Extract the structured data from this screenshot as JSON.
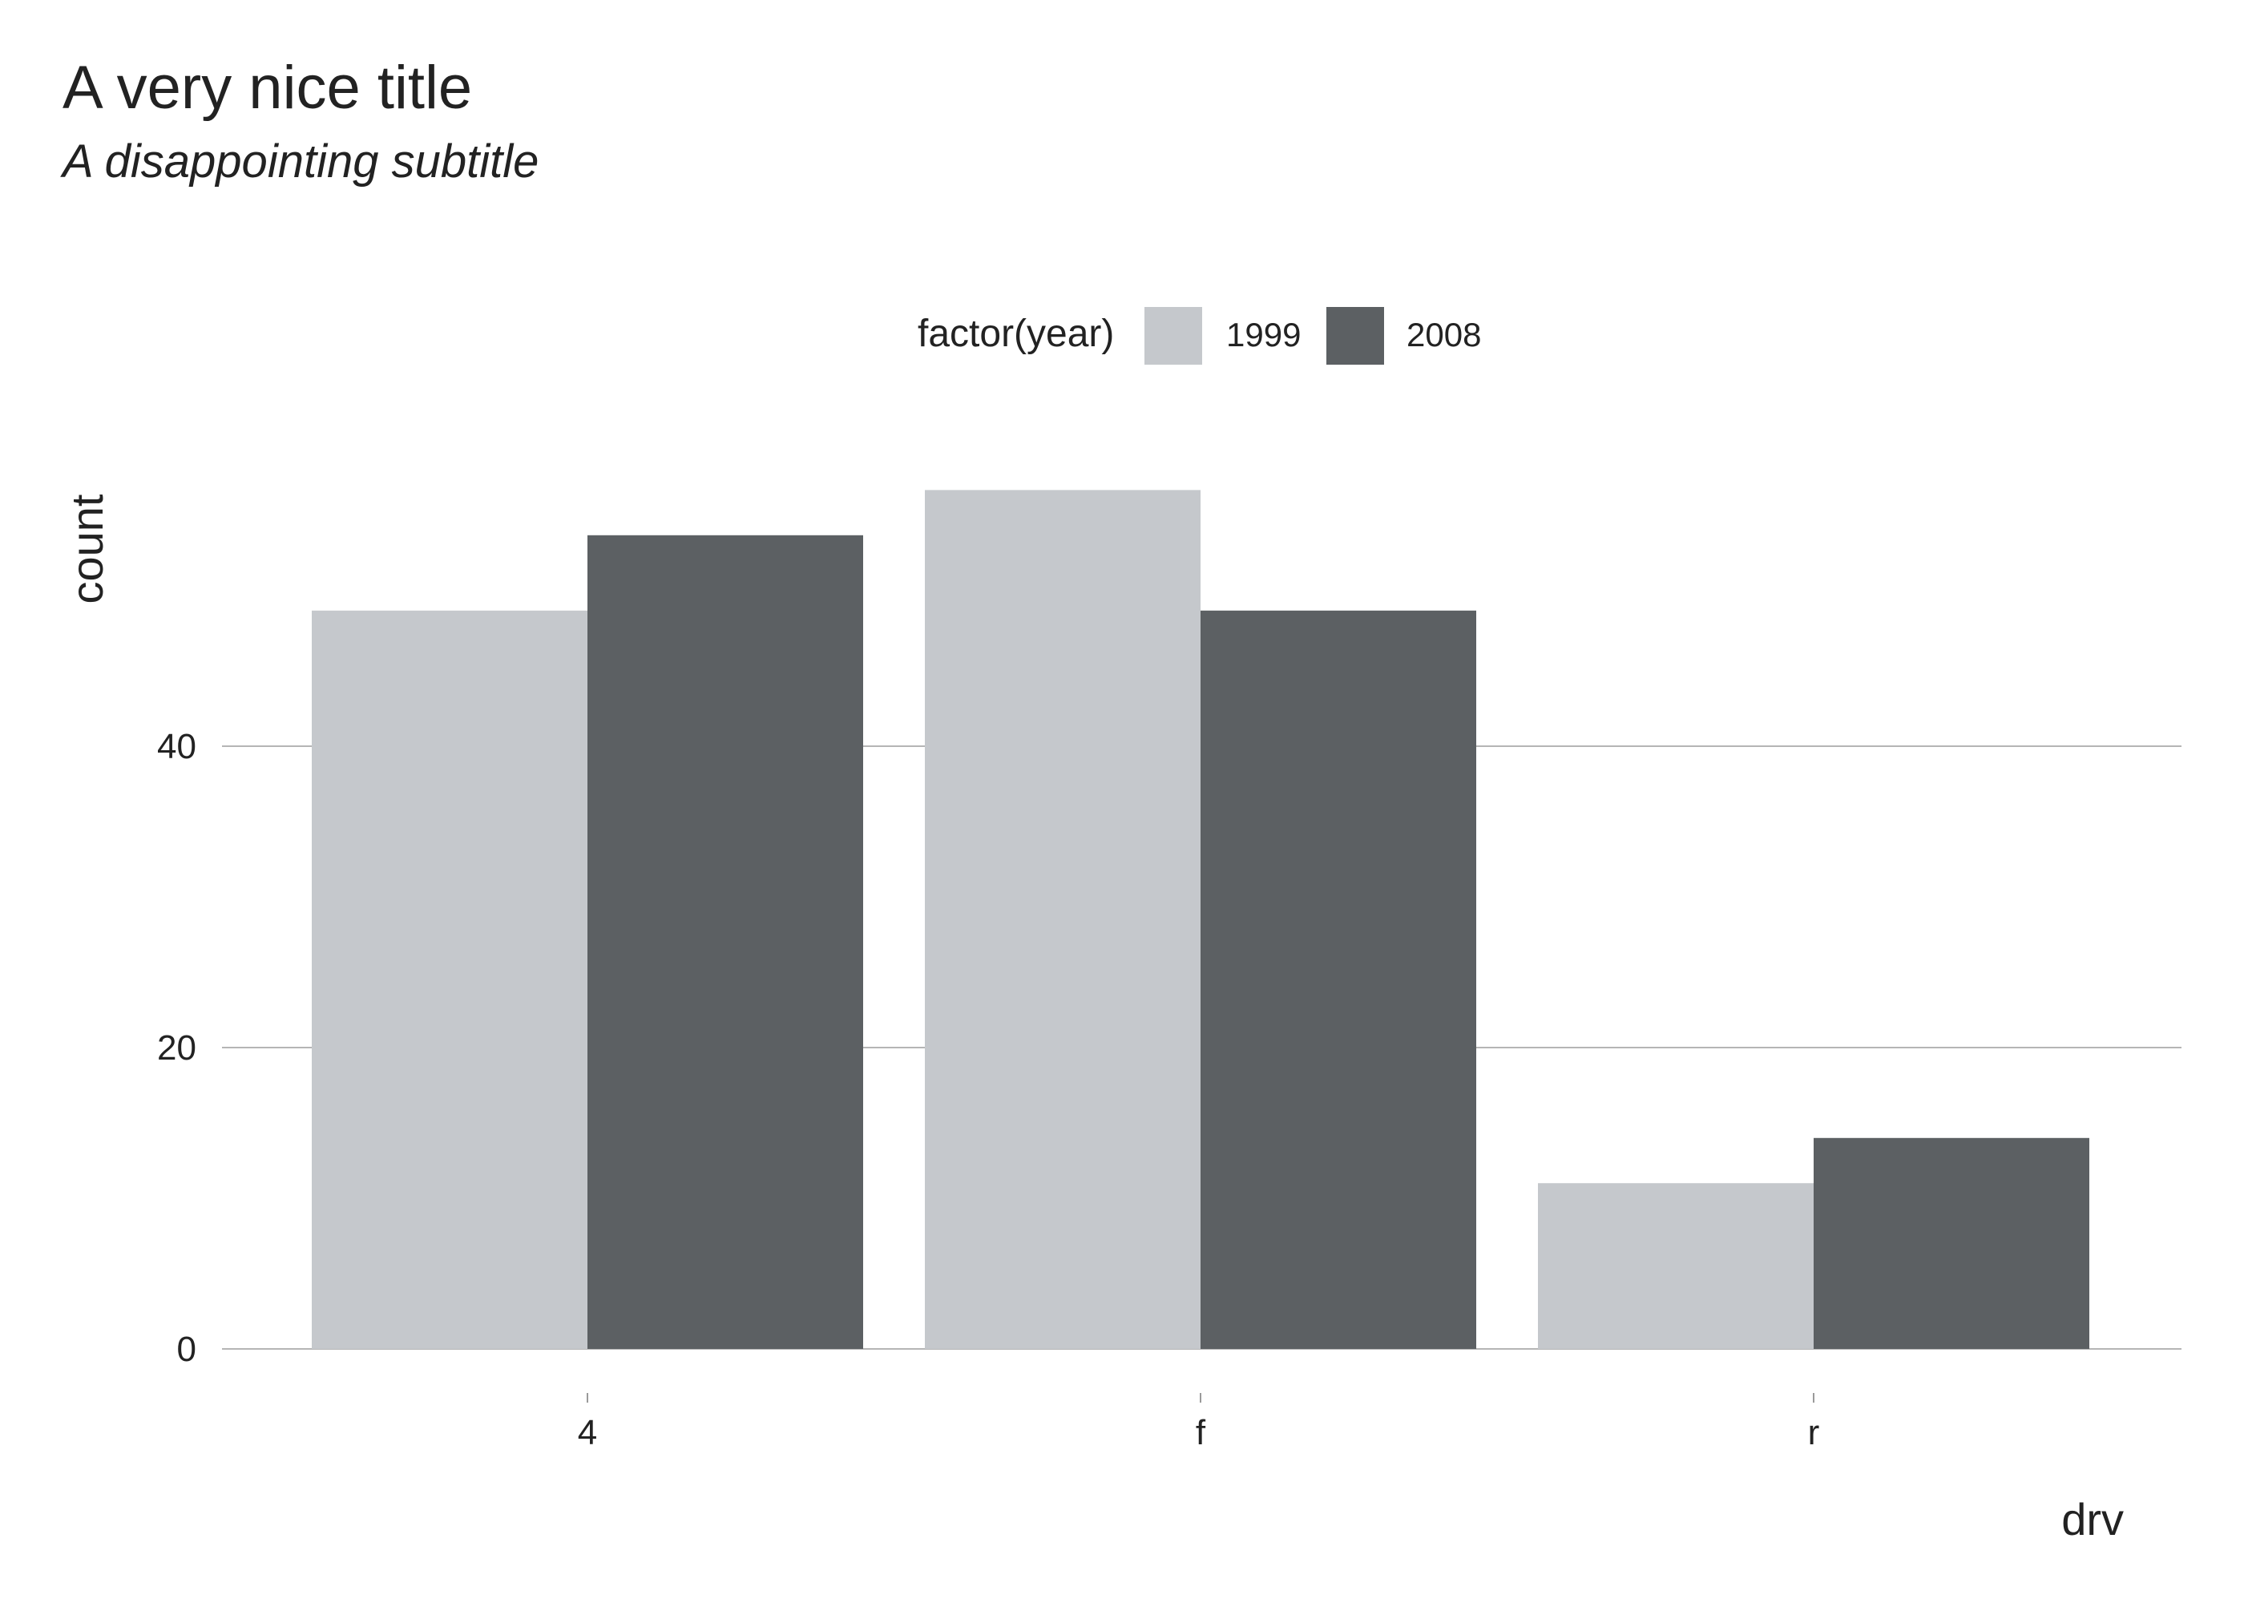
{
  "chart_data": {
    "type": "bar",
    "title": "A very nice title",
    "subtitle": "A disappointing subtitle",
    "xlabel": "drv",
    "ylabel": "count",
    "categories": [
      "4",
      "f",
      "r"
    ],
    "series": [
      {
        "name": "1999",
        "values": [
          49,
          57,
          11
        ],
        "color": "#c5c8cc"
      },
      {
        "name": "2008",
        "values": [
          54,
          49,
          14
        ],
        "color": "#5c6063"
      }
    ],
    "ylim": [
      0,
      60
    ],
    "yticks": [
      0,
      20,
      40
    ],
    "ytick_labels": [
      "0",
      "20",
      "40"
    ],
    "grid": true,
    "legend": {
      "title": "factor(year)",
      "placement": "top"
    },
    "colors": {
      "grid": "#b5b5b5",
      "text": "#222222",
      "tick": "#9a9a9a"
    }
  }
}
